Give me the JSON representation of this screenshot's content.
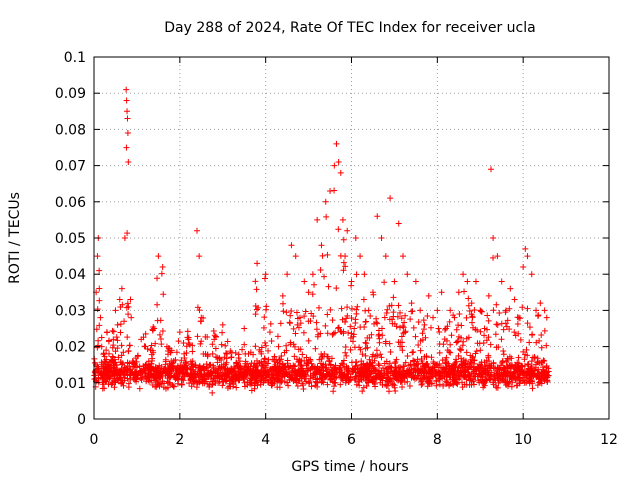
{
  "chart_data": {
    "type": "scatter",
    "title": "Day 288 of 2024, Rate Of TEC Index for receiver ucla",
    "xlabel": "GPS time / hours",
    "ylabel": "ROTI / TECUs",
    "xlim": [
      0,
      12
    ],
    "ylim": [
      0,
      0.1
    ],
    "x_ticks": [
      0,
      2,
      4,
      6,
      8,
      10,
      12
    ],
    "x_tick_labels": [
      "0",
      "2",
      "4",
      "6",
      "8",
      "10",
      "12"
    ],
    "y_ticks": [
      0,
      0.01,
      0.02,
      0.03,
      0.04,
      0.05,
      0.06,
      0.07,
      0.08,
      0.09,
      0.1
    ],
    "y_tick_labels": [
      "0",
      "0.01",
      "0.02",
      "0.03",
      "0.04",
      "0.05",
      "0.06",
      "0.07",
      "0.08",
      "0.09",
      "0.1"
    ],
    "grid": true,
    "marker": "+",
    "color": "#ff0000",
    "data_x_range": [
      0,
      10.6
    ],
    "series": [
      {
        "name": "ROTI",
        "x": [
          0.02,
          0.05,
          0.08,
          0.1,
          0.12,
          0.15,
          0.18,
          0.2,
          0.25,
          0.3,
          0.35,
          0.4,
          0.45,
          0.5,
          0.55,
          0.6,
          0.65,
          0.7,
          0.72,
          0.75,
          0.76,
          0.77,
          0.78,
          0.79,
          0.8,
          0.85,
          0.9,
          1.0,
          1.1,
          1.2,
          1.3,
          1.4,
          1.5,
          1.6,
          1.7,
          1.8,
          1.9,
          2.0,
          2.1,
          2.2,
          2.3,
          2.4,
          2.45,
          2.5,
          2.6,
          2.7,
          2.8,
          2.9,
          3.0,
          3.1,
          3.2,
          3.3,
          3.4,
          3.5,
          3.6,
          3.7,
          3.8,
          3.9,
          4.0,
          4.1,
          4.2,
          4.3,
          4.4,
          4.5,
          4.6,
          4.7,
          4.8,
          4.9,
          5.0,
          5.1,
          5.2,
          5.3,
          5.4,
          5.5,
          5.6,
          5.65,
          5.7,
          5.75,
          5.8,
          5.85,
          5.9,
          6.0,
          6.1,
          6.2,
          6.3,
          6.4,
          6.5,
          6.6,
          6.7,
          6.8,
          6.9,
          7.0,
          7.1,
          7.2,
          7.3,
          7.4,
          7.5,
          7.6,
          7.7,
          7.8,
          7.9,
          8.0,
          8.1,
          8.2,
          8.3,
          8.4,
          8.5,
          8.6,
          8.7,
          8.8,
          8.9,
          9.0,
          9.1,
          9.2,
          9.25,
          9.3,
          9.4,
          9.5,
          9.6,
          9.7,
          9.8,
          9.9,
          10.0,
          10.05,
          10.1,
          10.2,
          10.3,
          10.4,
          10.5,
          10.55
        ],
        "y": [
          0.013,
          0.035,
          0.045,
          0.05,
          0.041,
          0.028,
          0.02,
          0.012,
          0.016,
          0.024,
          0.018,
          0.014,
          0.022,
          0.03,
          0.026,
          0.033,
          0.036,
          0.027,
          0.05,
          0.091,
          0.088,
          0.085,
          0.083,
          0.079,
          0.071,
          0.033,
          0.016,
          0.012,
          0.022,
          0.02,
          0.014,
          0.025,
          0.045,
          0.042,
          0.02,
          0.016,
          0.011,
          0.024,
          0.018,
          0.022,
          0.016,
          0.052,
          0.045,
          0.028,
          0.018,
          0.015,
          0.022,
          0.014,
          0.026,
          0.018,
          0.014,
          0.011,
          0.016,
          0.025,
          0.018,
          0.012,
          0.043,
          0.018,
          0.04,
          0.024,
          0.016,
          0.02,
          0.034,
          0.04,
          0.048,
          0.045,
          0.028,
          0.038,
          0.035,
          0.04,
          0.055,
          0.048,
          0.06,
          0.063,
          0.07,
          0.076,
          0.071,
          0.068,
          0.055,
          0.045,
          0.052,
          0.038,
          0.05,
          0.045,
          0.04,
          0.03,
          0.035,
          0.056,
          0.05,
          0.045,
          0.061,
          0.038,
          0.054,
          0.045,
          0.04,
          0.032,
          0.038,
          0.03,
          0.026,
          0.034,
          0.028,
          0.03,
          0.035,
          0.025,
          0.03,
          0.028,
          0.035,
          0.04,
          0.038,
          0.032,
          0.038,
          0.03,
          0.025,
          0.034,
          0.069,
          0.05,
          0.045,
          0.038,
          0.03,
          0.036,
          0.033,
          0.028,
          0.042,
          0.047,
          0.045,
          0.04,
          0.03,
          0.032,
          0.03,
          0.028
        ]
      }
    ]
  }
}
